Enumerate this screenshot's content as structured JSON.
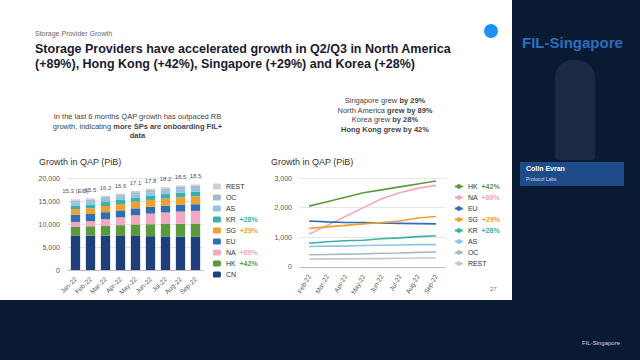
{
  "header": {
    "section": "Storage Provider Growth",
    "title": "Storage Providers have accelerated growth in Q2/Q3 in North America (+89%), Hong Kong (+42%), Singapore (+29%) and Korea (+28%)",
    "page": "27"
  },
  "event": {
    "name_top": "FIL-Singapore",
    "speaker": "Colin Evran",
    "affiliation": "Protocol Labs",
    "name_bottom": "FIL-Singapore"
  },
  "notes": {
    "left": [
      {
        "text": "In the last 6 months QAP growth has outpaced RB growth, indicating ",
        "bold": false
      },
      {
        "text": "more SPs are onboarding FIL+ data",
        "bold": true
      }
    ],
    "right": [
      [
        {
          "text": "Singapore grew ",
          "bold": false
        },
        {
          "text": "by 29%",
          "bold": true
        }
      ],
      [
        {
          "text": "North America ",
          "bold": false
        },
        {
          "text": "grew by 89%",
          "bold": true
        }
      ],
      [
        {
          "text": "Korea grew ",
          "bold": false
        },
        {
          "text": "by 28%",
          "bold": true
        }
      ],
      [
        {
          "text": "Hong Kong grew by 42%",
          "bold": true
        }
      ]
    ]
  },
  "chart_data": [
    {
      "type": "bar",
      "stacked": true,
      "title": "Growth in QAP (PiB)",
      "categories": [
        "Jan-22",
        "Feb-22",
        "Mar-22",
        "Apr-22",
        "May-22",
        "Jun-22",
        "Jul-22",
        "Aug-22",
        "Sep-22"
      ],
      "total_labels": [
        "15.3 (EiB)",
        "15.5",
        "16.2",
        "16.6",
        "17.1",
        "17.8",
        "18.2",
        "18.5",
        "18.5"
      ],
      "series": [
        {
          "name": "CN",
          "color": "#1f3f7a",
          "values": [
            7500,
            7450,
            7450,
            7400,
            7400,
            7350,
            7300,
            7250,
            7200
          ]
        },
        {
          "name": "HK",
          "color": "#5a9a3c",
          "annotation": "+42%",
          "values": [
            1950,
            2050,
            2200,
            2350,
            2500,
            2600,
            2700,
            2800,
            2900
          ]
        },
        {
          "name": "NA",
          "color": "#f4a7c0",
          "annotation": "+89%",
          "values": [
            1000,
            1100,
            1400,
            1700,
            2000,
            2300,
            2500,
            2650,
            2750
          ]
        },
        {
          "name": "EU",
          "color": "#2f6db5",
          "values": [
            1550,
            1550,
            1520,
            1500,
            1500,
            1480,
            1470,
            1460,
            1450
          ]
        },
        {
          "name": "SG",
          "color": "#f0a030",
          "annotation": "+29%",
          "values": [
            1250,
            1300,
            1350,
            1400,
            1450,
            1500,
            1550,
            1650,
            1700
          ]
        },
        {
          "name": "KR",
          "color": "#3bb0a8",
          "annotation": "+28%",
          "values": [
            780,
            800,
            850,
            880,
            900,
            950,
            980,
            1020,
            1050
          ]
        },
        {
          "name": "AS",
          "color": "#8fc3ea",
          "values": [
            680,
            690,
            700,
            700,
            720,
            730,
            740,
            750,
            750
          ]
        },
        {
          "name": "OC",
          "color": "#a8b8c8",
          "values": [
            400,
            410,
            420,
            430,
            440,
            460,
            470,
            490,
            500
          ]
        },
        {
          "name": "REST",
          "color": "#d0d0d0",
          "values": [
            250,
            260,
            270,
            270,
            280,
            280,
            290,
            300,
            300
          ]
        }
      ],
      "ylim": [
        0,
        20000
      ],
      "yticks": [
        0,
        {
          "value": 5000,
          "label": "5,000"
        },
        {
          "value": 10000,
          "label": "10,000"
        },
        {
          "value": 15000,
          "label": "15,000"
        },
        {
          "value": 20000,
          "label": "20,000"
        }
      ],
      "grid": true,
      "legend": "right"
    },
    {
      "type": "line",
      "title": "Growth in QAP (PiB)",
      "categories": [
        "Feb-22",
        "Mar-22",
        "Apr-22",
        "May-22",
        "Jun-22",
        "Jul-22",
        "Aug-22",
        "Sep-22"
      ],
      "series": [
        {
          "name": "HK",
          "color": "#5a9a3c",
          "annotation": "+42%",
          "values": [
            2050,
            2200,
            2350,
            2500,
            2600,
            2700,
            2800,
            2900
          ]
        },
        {
          "name": "NA",
          "color": "#f4a7c0",
          "annotation": "+89%",
          "values": [
            1100,
            1400,
            1700,
            2000,
            2300,
            2500,
            2650,
            2750
          ]
        },
        {
          "name": "EU",
          "color": "#2f6db5",
          "values": [
            1550,
            1520,
            1500,
            1500,
            1480,
            1470,
            1460,
            1450
          ]
        },
        {
          "name": "SG",
          "color": "#f0a030",
          "annotation": "+29%",
          "values": [
            1300,
            1350,
            1400,
            1450,
            1500,
            1550,
            1650,
            1700
          ]
        },
        {
          "name": "KR",
          "color": "#3bb0a8",
          "annotation": "+28%",
          "values": [
            800,
            850,
            880,
            900,
            950,
            980,
            1020,
            1050
          ]
        },
        {
          "name": "AS",
          "color": "#8fc3ea",
          "values": [
            690,
            700,
            700,
            720,
            730,
            740,
            750,
            750
          ]
        },
        {
          "name": "OC",
          "color": "#a8b8c8",
          "values": [
            410,
            420,
            430,
            440,
            460,
            470,
            490,
            500
          ]
        },
        {
          "name": "REST",
          "color": "#c8c8c8",
          "values": [
            260,
            270,
            270,
            280,
            280,
            290,
            300,
            300
          ]
        }
      ],
      "ylim": [
        0,
        3000
      ],
      "yticks": [
        0,
        {
          "value": 1000,
          "label": "1,000"
        },
        {
          "value": 2000,
          "label": "2,000"
        },
        {
          "value": 3000,
          "label": "3,000"
        }
      ],
      "grid": true,
      "legend": "right"
    }
  ]
}
